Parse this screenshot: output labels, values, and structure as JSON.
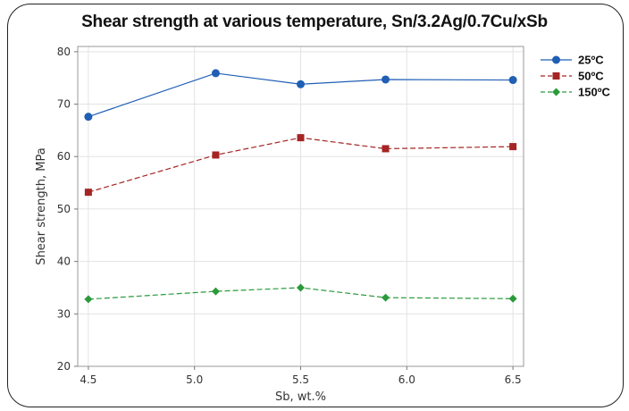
{
  "chart_data": {
    "type": "line",
    "title": "Shear strength at various temperature, Sn/3.2Ag/0.7Cu/xSb",
    "xlabel": "Sb, wt.%",
    "ylabel": "Shear strength, MPa",
    "x": [
      4.5,
      5.1,
      5.5,
      5.9,
      6.5
    ],
    "xticks": [
      4.5,
      5.0,
      5.5,
      6.0,
      6.5
    ],
    "xtick_labels": [
      "4.5",
      "5.0",
      "5.5",
      "6.0",
      "6.5"
    ],
    "xlim": [
      4.45,
      6.55
    ],
    "yticks": [
      20,
      30,
      40,
      50,
      60,
      70,
      80
    ],
    "ytick_labels": [
      "20",
      "30",
      "40",
      "50",
      "60",
      "70",
      "80"
    ],
    "ylim": [
      20,
      81
    ],
    "grid": true,
    "legend_position": "right",
    "series": [
      {
        "name": "25ºC",
        "values": [
          67.6,
          75.9,
          73.8,
          74.7,
          74.6
        ],
        "color": "#1f5fb5",
        "marker": "circle",
        "dash": "solid"
      },
      {
        "name": "50ºC",
        "values": [
          53.2,
          60.3,
          63.6,
          61.5,
          61.9
        ],
        "color": "#a52424",
        "marker": "square",
        "dash": "dashed"
      },
      {
        "name": "150ºC",
        "values": [
          32.8,
          34.3,
          35.0,
          33.1,
          32.9
        ],
        "color": "#2a9a3a",
        "marker": "diamond",
        "dash": "dashed"
      }
    ]
  }
}
